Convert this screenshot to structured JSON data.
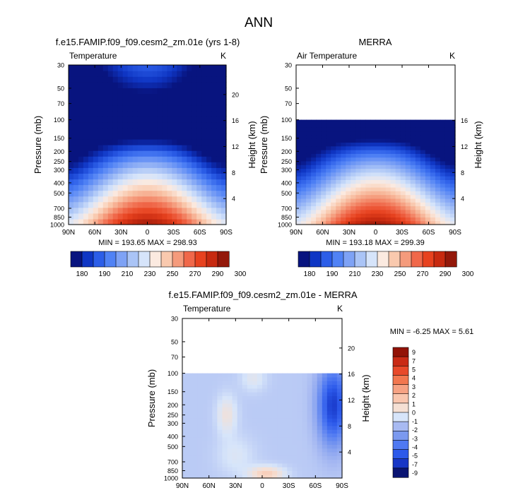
{
  "figure": {
    "title": "ANN"
  },
  "chart_data": [
    {
      "type": "heatmap",
      "title": "f.e15.FAMIP.f09_f09.cesm2_zm.01e (yrs 1-8)",
      "variable": "Temperature",
      "units": "K",
      "ylabel": "Pressure (mb)",
      "ylabel_right": "Height (km)",
      "x_ticks": [
        "90N",
        "60N",
        "30N",
        "0",
        "30S",
        "60S",
        "90S"
      ],
      "y_ticks": [
        "30",
        "50",
        "70",
        "100",
        "150",
        "200",
        "250",
        "300",
        "400",
        "500",
        "700",
        "850",
        "1000"
      ],
      "y_ticks_right": [
        "20",
        "16",
        "12",
        "8",
        "4"
      ],
      "stats": "MIN = 193.65  MAX = 298.93",
      "min": 193.65,
      "max": 298.93,
      "data_top_pressure": 30,
      "colorbar_labels": [
        "180",
        "190",
        "210",
        "230",
        "250",
        "270",
        "290",
        "300"
      ],
      "colorbar_levels": 14
    },
    {
      "type": "heatmap",
      "title": "MERRA",
      "variable": "Air Temperature",
      "units": "K",
      "ylabel": "Pressure (mb)",
      "ylabel_right": "Height (km)",
      "x_ticks": [
        "90N",
        "60N",
        "30N",
        "0",
        "30S",
        "60S",
        "90S"
      ],
      "y_ticks": [
        "30",
        "50",
        "70",
        "100",
        "150",
        "200",
        "250",
        "300",
        "400",
        "500",
        "700",
        "850",
        "1000"
      ],
      "y_ticks_right": [
        "16",
        "12",
        "8",
        "4"
      ],
      "stats": "MIN = 193.18  MAX = 299.39",
      "min": 193.18,
      "max": 299.39,
      "data_top_pressure": 100,
      "colorbar_labels": [
        "180",
        "190",
        "210",
        "230",
        "250",
        "270",
        "290",
        "300"
      ],
      "colorbar_levels": 14
    },
    {
      "type": "heatmap",
      "title": "f.e15.FAMIP.f09_f09.cesm2_zm.01e - MERRA",
      "variable": "Temperature",
      "units": "K",
      "ylabel": "Pressure (mb)",
      "ylabel_right": "Height (km)",
      "x_ticks": [
        "90N",
        "60N",
        "30N",
        "0",
        "30S",
        "60S",
        "90S"
      ],
      "y_ticks": [
        "30",
        "50",
        "70",
        "100",
        "150",
        "200",
        "250",
        "300",
        "400",
        "500",
        "700",
        "850",
        "1000"
      ],
      "y_ticks_right": [
        "20",
        "16",
        "12",
        "8",
        "4"
      ],
      "stats": "MIN = -6.25  MAX =  5.61",
      "min": -6.25,
      "max": 5.61,
      "data_top_pressure": 100,
      "colorbar_labels": [
        "9",
        "7",
        "5",
        "4",
        "3",
        "2",
        "1",
        "0",
        "-1",
        "-2",
        "-3",
        "-4",
        "-5",
        "-7",
        "-9"
      ]
    }
  ]
}
